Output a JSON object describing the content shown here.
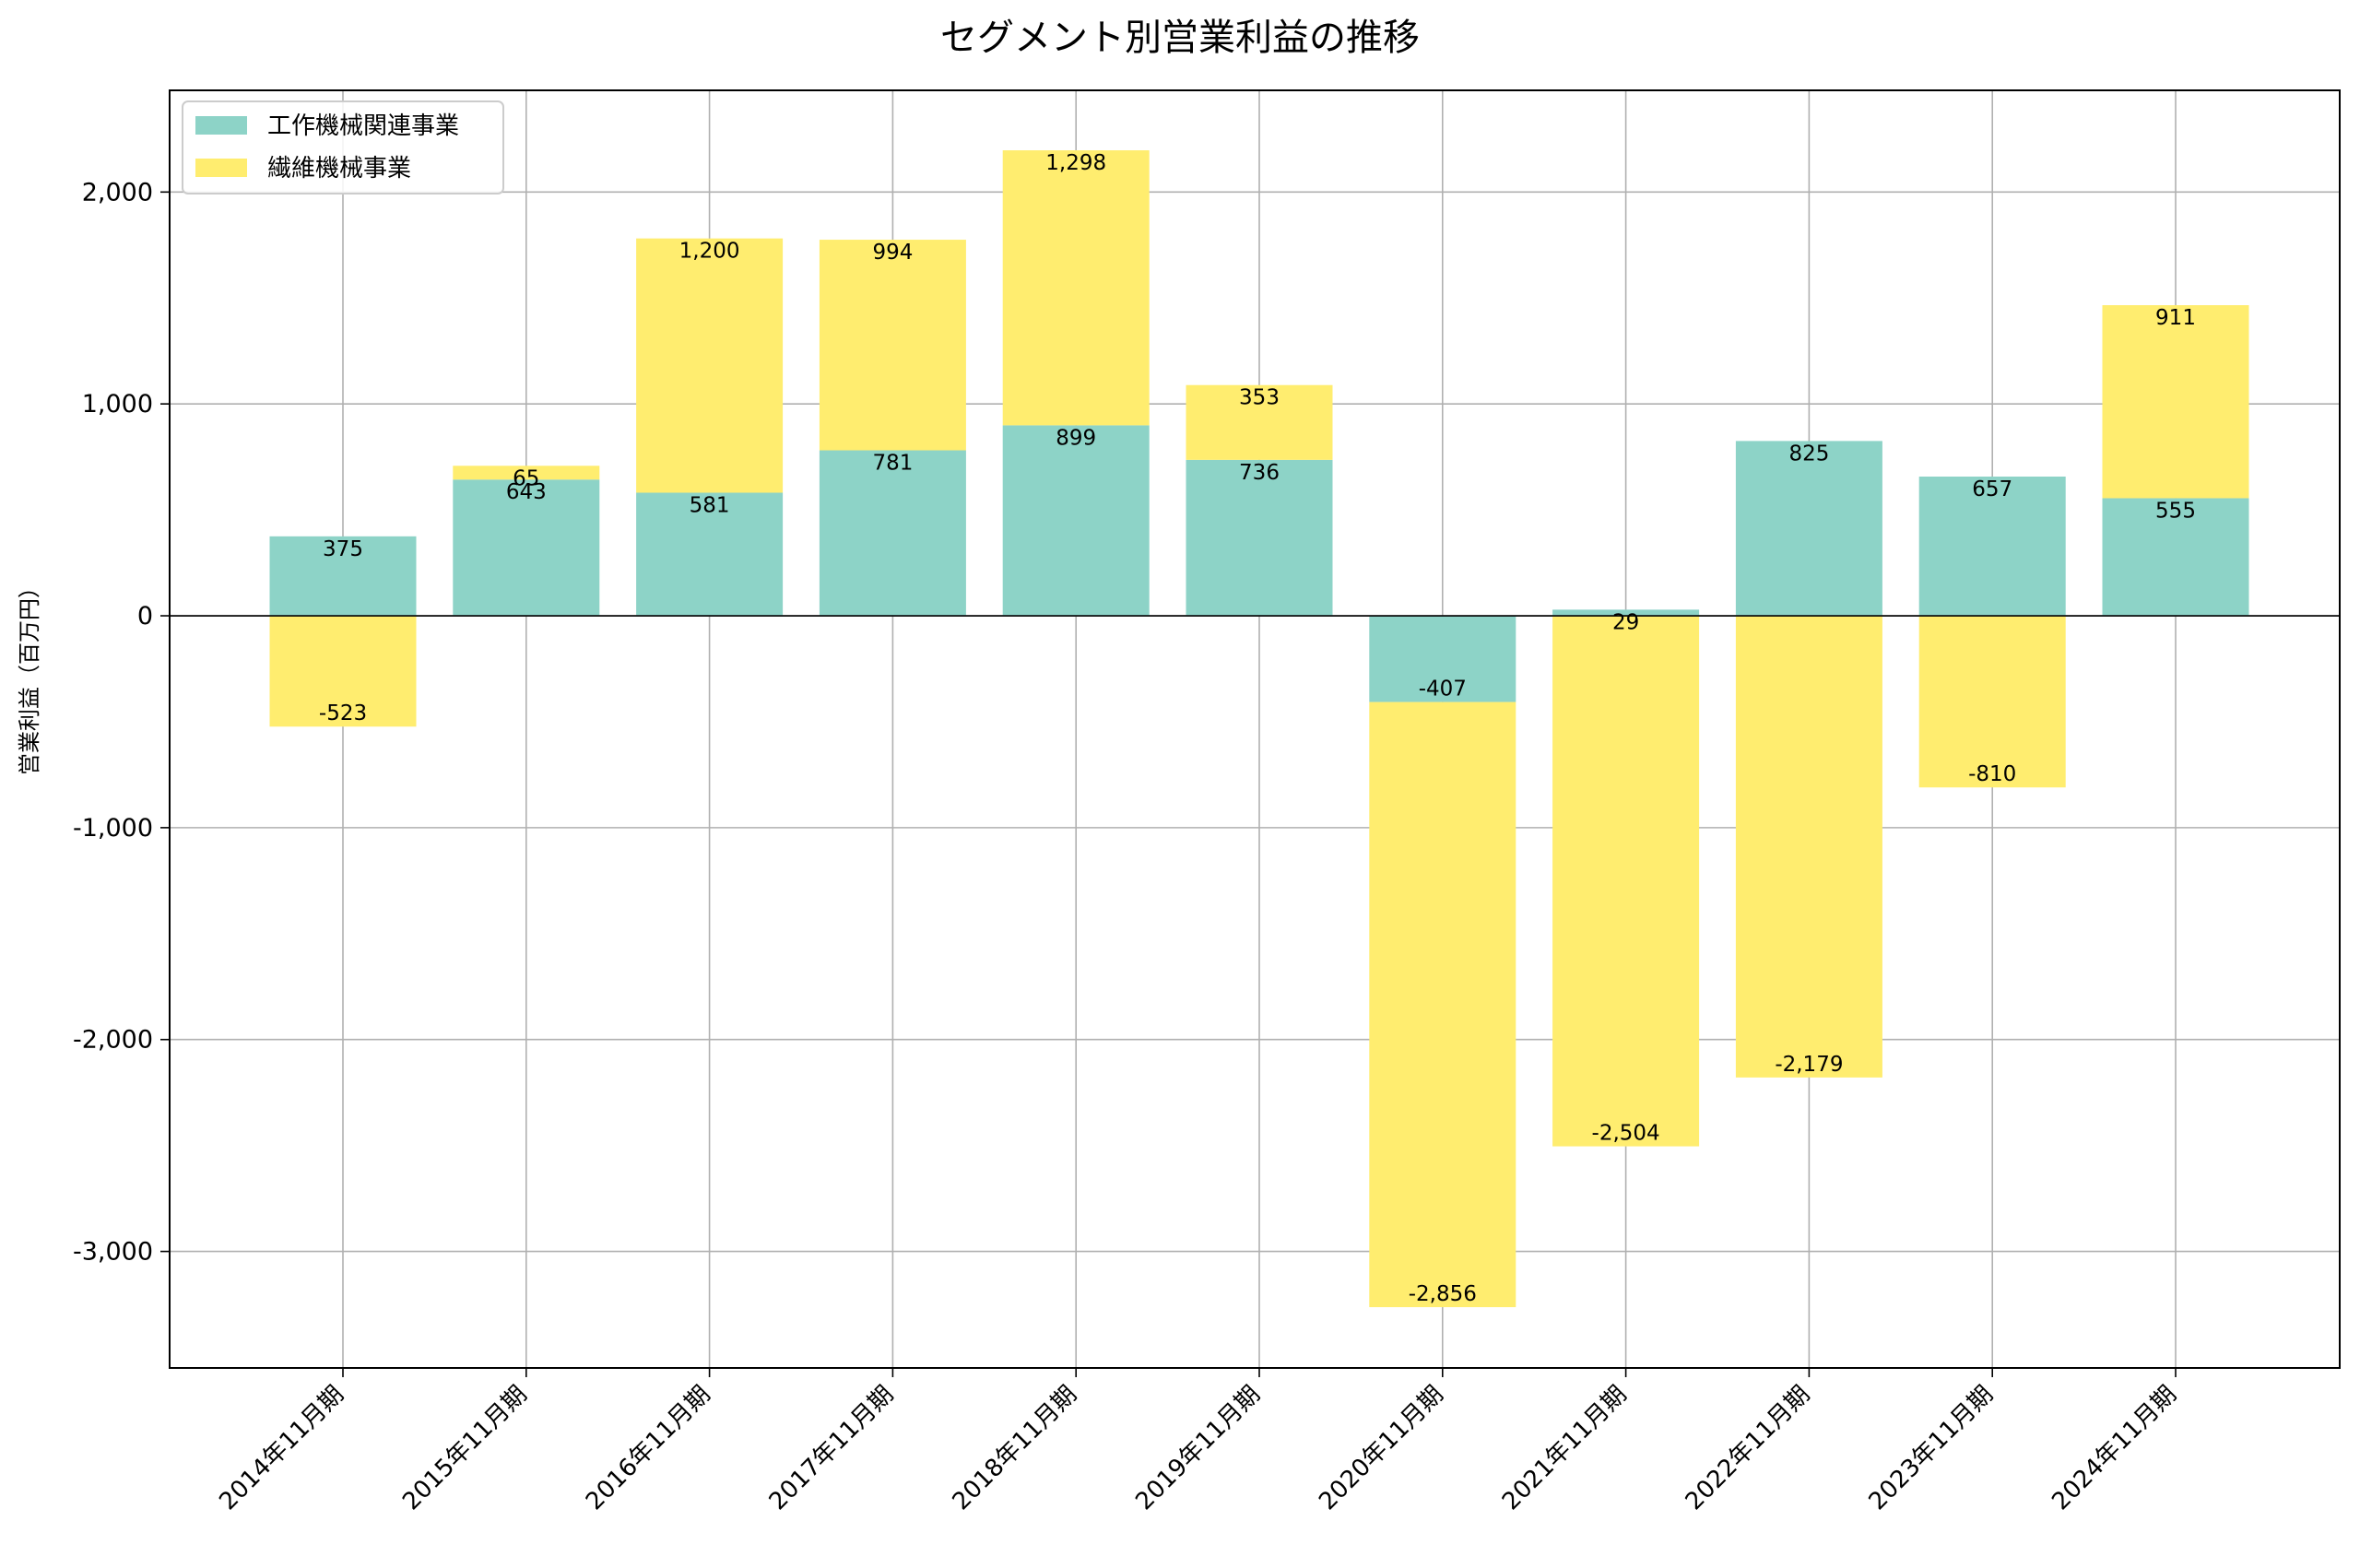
{
  "chart_data": {
    "type": "bar",
    "stacked": true,
    "title": "セグメント別営業利益の推移",
    "xlabel": "",
    "ylabel": "営業利益（百万円）",
    "ylim": [
      -3550,
      2480
    ],
    "yticks": [
      2000,
      1000,
      0,
      -1000,
      -2000,
      -3000
    ],
    "ytick_labels": [
      "2,000",
      "1,000",
      "0",
      "-1,000",
      "-2,000",
      "-3,000"
    ],
    "grid": true,
    "legend_position": "top-left",
    "categories": [
      "2014年11月期",
      "2015年11月期",
      "2016年11月期",
      "2017年11月期",
      "2018年11月期",
      "2019年11月期",
      "2020年11月期",
      "2021年11月期",
      "2022年11月期",
      "2023年11月期",
      "2024年11月期"
    ],
    "series": [
      {
        "name": "工作機械関連事業",
        "color": "#8DD3C7",
        "values": [
          375,
          643,
          581,
          781,
          899,
          736,
          -407,
          29,
          825,
          657,
          555
        ],
        "labels": [
          "375",
          "643",
          "581",
          "781",
          "899",
          "736",
          "-407",
          "29",
          "825",
          "657",
          "555"
        ]
      },
      {
        "name": "繊維機械事業",
        "color": "#FFED6F",
        "values": [
          -523,
          65,
          1200,
          994,
          1298,
          353,
          -2856,
          -2504,
          -2179,
          -810,
          911
        ],
        "labels": [
          "-523",
          "65",
          "1,200",
          "994",
          "1,298",
          "353",
          "-2,856",
          "-2,504",
          "-2,179",
          "-810",
          "911"
        ]
      }
    ]
  }
}
